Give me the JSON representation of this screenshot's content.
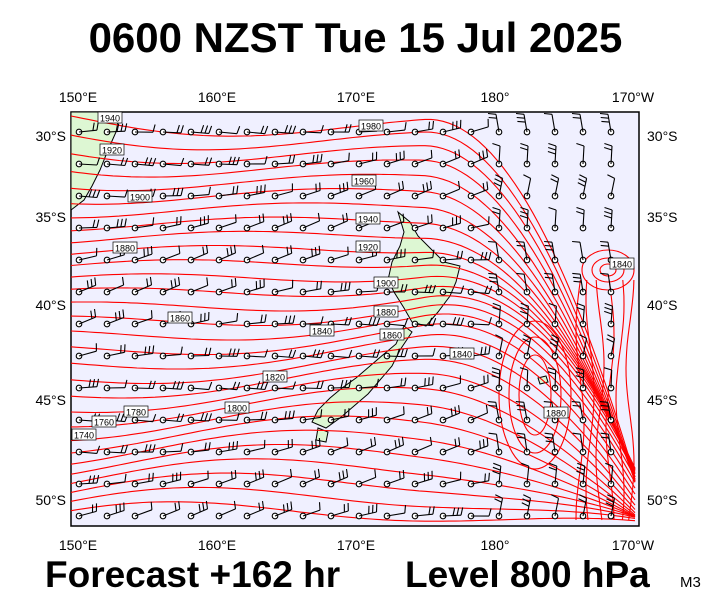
{
  "header": {
    "title": "0600 NZST Tue 15 Jul 2025"
  },
  "footer": {
    "forecast": "Forecast +162 hr",
    "level": "Level 800 hPa",
    "model": "M3"
  },
  "map": {
    "lon_labels": [
      "150°E",
      "160°E",
      "170°E",
      "180°",
      "170°W"
    ],
    "lat_labels": [
      "30°S",
      "35°S",
      "40°S",
      "45°S",
      "50°S"
    ],
    "contour_labels": [
      "1940",
      "1920",
      "1900",
      "1880",
      "1860",
      "1840",
      "1820",
      "1800",
      "1780",
      "1760",
      "1740",
      "1980",
      "1960",
      "1940",
      "1920",
      "1900",
      "1880",
      "1860",
      "1840",
      "1880",
      "1840",
      "1860"
    ],
    "colors": {
      "ocean": "#f0f0ff",
      "land": "#ddf7d3",
      "contour": "#ff0000",
      "coast": "#000000",
      "barb": "#000000"
    }
  }
}
